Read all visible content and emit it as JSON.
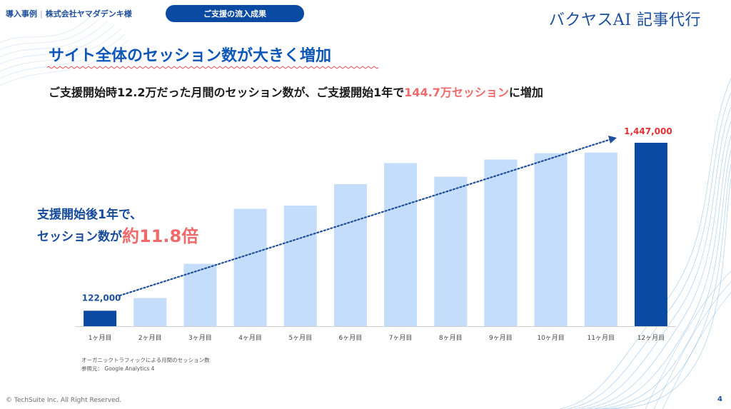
{
  "header": {
    "breadcrumb_case": "導入事例",
    "breadcrumb_separator": "|",
    "breadcrumb_client": "株式会社ヤマダデンキ様",
    "section_label": "ご支援の流入成果",
    "brand": "バクヤスAI 記事代行"
  },
  "title": "サイト全体のセッション数が大きく増加",
  "lead": {
    "part1": "ご支援開始時12.2万だった月間のセッション数が、ご支援開始1年で",
    "highlight": "144.7万セッション",
    "part2": "に増加"
  },
  "callout": {
    "line1": "支援開始後1年で、",
    "line2_prefix": "セッション数が",
    "line2_highlight": "約11.8倍"
  },
  "chart_data": {
    "type": "bar",
    "categories": [
      "1ヶ月目",
      "2ヶ月目",
      "3ヶ月目",
      "4ヶ月目",
      "5ヶ月目",
      "6ヶ月目",
      "7ヶ月目",
      "8ヶ月目",
      "9ヶ月目",
      "10ヶ月目",
      "11ヶ月目",
      "12ヶ月目"
    ],
    "values": [
      122000,
      222000,
      492000,
      926000,
      951000,
      1120000,
      1287000,
      1179000,
      1315000,
      1365000,
      1370000,
      1447000
    ],
    "data_labels": {
      "0": "122,000",
      "11": "1,447,000"
    },
    "ylim": [
      0,
      1550000
    ],
    "grid": false,
    "trend_arrow": true,
    "colors": {
      "highlight": "#0b4aa2",
      "normal": "#c3ddfa",
      "label_start": "#1d4f9a",
      "label_end": "#e53030",
      "trend": "#1f4e9a"
    }
  },
  "notes": {
    "line1": "オーガニックトラフィックによる月間のセッション数",
    "line2": "参照元： Google Analytics 4"
  },
  "footer": {
    "copyright": "© TechSuite Inc. All Right Reserved.",
    "page": "4"
  }
}
